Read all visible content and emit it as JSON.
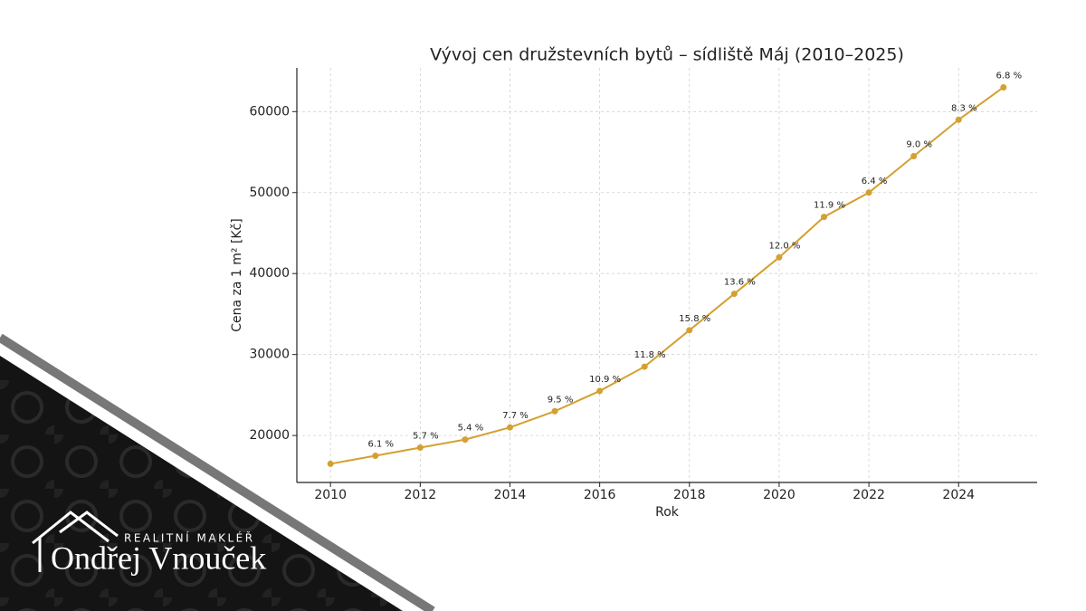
{
  "chart_data": {
    "type": "line",
    "title": "Vývoj cen družstevních bytů – sídliště Máj (2010–2025)",
    "x_label": "Rok",
    "y_label": "Cena za 1 m² [Kč]",
    "x": [
      2010,
      2011,
      2012,
      2013,
      2014,
      2015,
      2016,
      2017,
      2018,
      2019,
      2020,
      2021,
      2022,
      2023,
      2024,
      2025
    ],
    "values": [
      16500,
      17500,
      18500,
      19500,
      21000,
      23000,
      25500,
      28500,
      33000,
      37500,
      42000,
      47000,
      50000,
      54500,
      59000,
      63000
    ],
    "point_labels": [
      null,
      "6.1 %",
      "5.7 %",
      "5.4 %",
      "7.7 %",
      "9.5 %",
      "10.9 %",
      "11.8 %",
      "15.8 %",
      "13.6 %",
      "12.0 %",
      "11.9 %",
      "6.4 %",
      "9.0 %",
      "8.3 %",
      "6.8 %"
    ],
    "color": "#d4a030",
    "xlim": [
      2009.25,
      2025.75
    ],
    "xticks": [
      2010,
      2012,
      2014,
      2016,
      2018,
      2020,
      2022,
      2024
    ],
    "ylim": [
      14200,
      65400
    ],
    "yticks": [
      20000,
      30000,
      40000,
      50000,
      60000
    ],
    "grid": true
  },
  "branding": {
    "tagline": "REALITNÍ MAKLÉŘ",
    "name": "Ondřej Vnouček"
  }
}
